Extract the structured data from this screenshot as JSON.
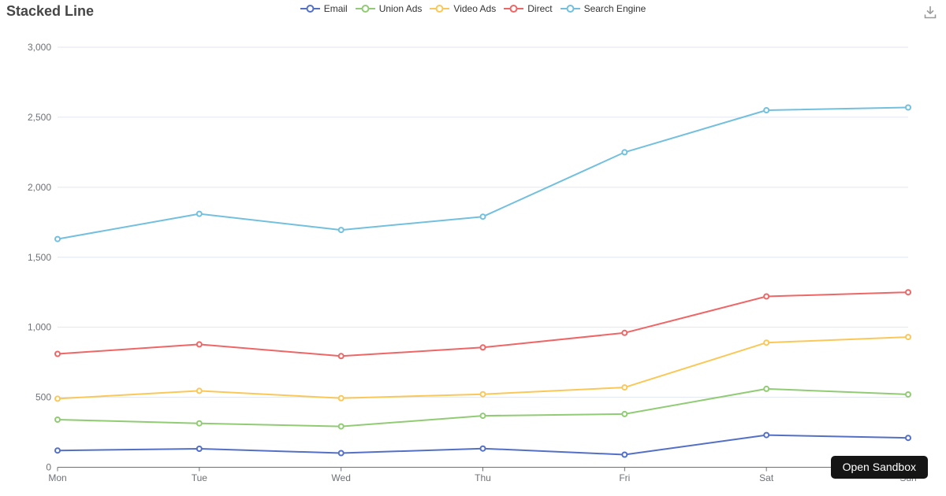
{
  "icons": {
    "download": "download-icon"
  },
  "sandbox_button": {
    "label": "Open Sandbox",
    "bg": "#151515",
    "text_color": "#ffffff"
  },
  "chart_data": {
    "type": "line",
    "title": "Stacked Line",
    "stacked": true,
    "stacking": "cumulative",
    "grid": true,
    "legend_position": "top-center",
    "categories": [
      "Mon",
      "Tue",
      "Wed",
      "Thu",
      "Fri",
      "Sat",
      "Sun"
    ],
    "series": [
      {
        "name": "Email",
        "color": "#5470c6",
        "values": [
          120,
          132,
          101,
          134,
          90,
          230,
          210
        ]
      },
      {
        "name": "Union Ads",
        "color": "#91cc75",
        "values": [
          220,
          182,
          191,
          234,
          290,
          330,
          310
        ]
      },
      {
        "name": "Video Ads",
        "color": "#fac858",
        "values": [
          150,
          232,
          201,
          154,
          190,
          330,
          410
        ]
      },
      {
        "name": "Direct",
        "color": "#ee6666",
        "values": [
          320,
          332,
          301,
          334,
          390,
          330,
          320
        ]
      },
      {
        "name": "Search Engine",
        "color": "#73c0de",
        "values": [
          820,
          932,
          901,
          934,
          1290,
          1330,
          1320
        ]
      }
    ],
    "stacked_cumulative": {
      "Email": [
        120,
        132,
        101,
        134,
        90,
        230,
        210
      ],
      "Union Ads": [
        340,
        314,
        292,
        368,
        380,
        560,
        520
      ],
      "Video Ads": [
        490,
        546,
        493,
        522,
        570,
        890,
        930
      ],
      "Direct": [
        810,
        878,
        794,
        856,
        960,
        1220,
        1250
      ],
      "Search Engine": [
        1630,
        1810,
        1695,
        1790,
        2250,
        2550,
        2570
      ]
    },
    "xlabel": "",
    "ylabel": "",
    "ylim": [
      0,
      3000
    ],
    "ytick_values": [
      0,
      500,
      1000,
      1500,
      2000,
      2500,
      3000
    ],
    "ytick_labels": [
      "0",
      "500",
      "1,000",
      "1,500",
      "2,000",
      "2,500",
      "3,000"
    ],
    "colors": {
      "grid_line": "#E0E6F1",
      "axis_line": "#6E7079",
      "axis_label": "#6E7079",
      "legend_text": "#333333",
      "title_text": "#464646",
      "toolbox_icon": "#9a9a9a"
    }
  }
}
